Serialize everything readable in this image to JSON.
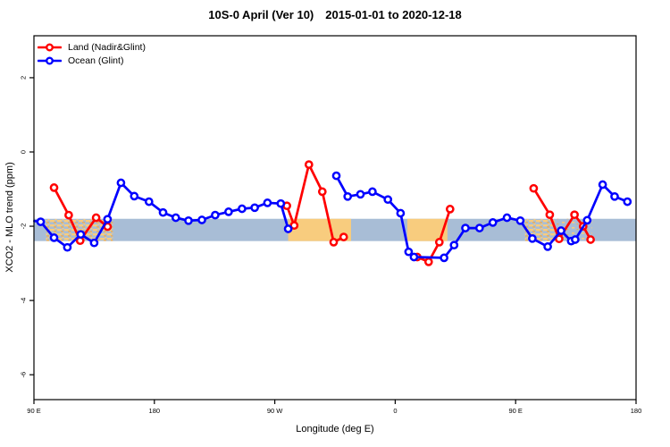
{
  "figure": {
    "title_left": "10S-0 April (Ver 10)",
    "title_right": "2015-01-01 to 2020-12-18",
    "x_axis_label": "Longitude (deg E)",
    "y_axis_label": "XCO2 - MLO trend (ppm)"
  },
  "chart_data": {
    "type": "line",
    "title": "10S-0 April (Ver 10)  2015-01-01 to 2020-12-18",
    "xlabel": "Longitude (deg E)",
    "ylabel": "XCO2 - MLO trend (ppm)",
    "xlim": [
      90,
      540
    ],
    "ylim": [
      -6.67,
      3.13
    ],
    "grid": false,
    "x_ticks": [
      {
        "value": 90,
        "label": "90 E"
      },
      {
        "value": 180,
        "label": "180"
      },
      {
        "value": 270,
        "label": "90 W"
      },
      {
        "value": 360,
        "label": "0"
      },
      {
        "value": 450,
        "label": "90 E"
      },
      {
        "value": 540,
        "label": "180"
      }
    ],
    "y_ticks": [
      {
        "value": 2,
        "label": "2"
      },
      {
        "value": 0,
        "label": "0"
      },
      {
        "value": -2,
        "label": "-2"
      },
      {
        "value": -4,
        "label": "-4"
      },
      {
        "value": -6,
        "label": "-6"
      }
    ],
    "background_band": {
      "description": "map strip of the 10S-0 latitude band (ocean blue, land orange)",
      "value_top": -1.8,
      "value_bottom": -2.4,
      "ocean_color": "#a8bdd6",
      "land_color": "#f8cc7e",
      "land_speckle_color": "#eead52",
      "land_patches": [
        {
          "from": 99,
          "to": 149,
          "style": "mottled"
        },
        {
          "from": 280,
          "to": 327,
          "style": "solid"
        },
        {
          "from": 369,
          "to": 399,
          "style": "solid"
        },
        {
          "from": 457,
          "to": 479,
          "style": "mottled"
        },
        {
          "from": 479,
          "to": 507,
          "style": "sparse"
        }
      ]
    },
    "legend": {
      "position": "top-left",
      "entries": [
        "Land (Nadir&Glint)",
        "Ocean (Glint)"
      ]
    },
    "series": [
      {
        "name": "Land (Nadir&Glint)",
        "color": "#ff0000",
        "segments": [
          [
            [
              105,
              -0.96
            ],
            [
              116,
              -1.7
            ],
            [
              124.5,
              -2.39
            ],
            [
              136.5,
              -1.77
            ],
            [
              145,
              -2.01
            ]
          ],
          [
            [
              279,
              -1.45
            ],
            [
              284.5,
              -1.98
            ],
            [
              295.5,
              -0.34
            ],
            [
              305.5,
              -1.07
            ],
            [
              314,
              -2.43
            ],
            [
              321.5,
              -2.29
            ]
          ],
          [
            [
              376.5,
              -2.83
            ],
            [
              385,
              -2.96
            ],
            [
              393,
              -2.43
            ],
            [
              401,
              -1.54
            ]
          ],
          [
            [
              463.5,
              -0.98
            ],
            [
              475.5,
              -1.69
            ],
            [
              482.5,
              -2.34
            ],
            [
              494,
              -1.69
            ],
            [
              500.5,
              -2.0
            ],
            [
              506,
              -2.36
            ]
          ]
        ]
      },
      {
        "name": "Ocean (Glint)",
        "color": "#0000ff",
        "segments": [
          [
            [
              90.3,
              -1.86,
              1
            ],
            [
              95,
              -1.88
            ],
            [
              105,
              -2.31
            ],
            [
              115,
              -2.57
            ],
            [
              125,
              -2.22
            ],
            [
              135,
              -2.45
            ],
            [
              145,
              -1.81
            ],
            [
              155,
              -0.83
            ],
            [
              165,
              -1.19
            ],
            [
              176,
              -1.34
            ],
            [
              186.5,
              -1.63
            ],
            [
              196,
              -1.77
            ],
            [
              205.5,
              -1.85
            ],
            [
              215.5,
              -1.83
            ],
            [
              225.5,
              -1.7
            ],
            [
              235.5,
              -1.61
            ],
            [
              245.5,
              -1.53
            ],
            [
              255,
              -1.5
            ],
            [
              264.5,
              -1.37
            ],
            [
              274.5,
              -1.39
            ],
            [
              280,
              -2.07
            ]
          ],
          [
            [
              316,
              -0.64
            ],
            [
              324.5,
              -1.2
            ],
            [
              334,
              -1.14
            ],
            [
              343,
              -1.07
            ],
            [
              354.5,
              -1.28
            ],
            [
              364,
              -1.65
            ],
            [
              370,
              -2.69
            ],
            [
              374,
              -2.83
            ],
            [
              396.5,
              -2.85
            ],
            [
              404,
              -2.51
            ],
            [
              412.5,
              -2.05
            ],
            [
              423,
              -2.05
            ],
            [
              433,
              -1.9
            ],
            [
              443.5,
              -1.77
            ],
            [
              453.5,
              -1.85
            ],
            [
              462.5,
              -2.33
            ],
            [
              474,
              -2.55
            ],
            [
              484,
              -2.12
            ],
            [
              491.5,
              -2.4
            ],
            [
              494.5,
              -2.36
            ],
            [
              503.5,
              -1.84
            ],
            [
              515,
              -0.88
            ],
            [
              524,
              -1.2
            ],
            [
              533.5,
              -1.34
            ]
          ]
        ]
      }
    ]
  }
}
